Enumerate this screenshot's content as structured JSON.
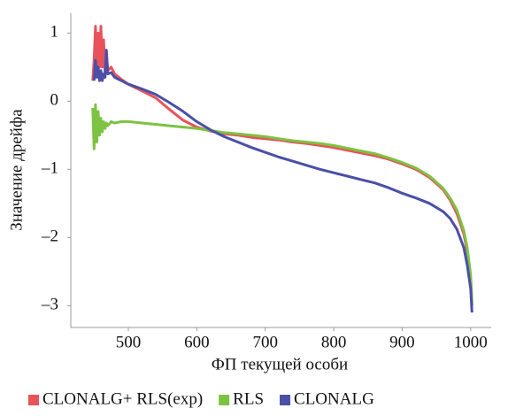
{
  "chart_data": {
    "type": "line",
    "x_label": "ФП текущей особи",
    "y_label": "Значение дрейфа",
    "x": [
      448,
      450,
      452,
      454,
      456,
      458,
      460,
      462,
      464,
      466,
      468,
      470,
      475,
      480,
      490,
      500,
      520,
      540,
      560,
      580,
      600,
      620,
      640,
      660,
      680,
      700,
      720,
      740,
      760,
      780,
      800,
      820,
      840,
      860,
      880,
      900,
      920,
      940,
      960,
      970,
      980,
      990,
      995,
      1000,
      1002
    ],
    "series": [
      {
        "name": "CLONALG+ RLS(exp)",
        "color": "#e8525a",
        "values": [
          0.3,
          0.6,
          1.1,
          0.4,
          1.0,
          0.5,
          1.1,
          0.5,
          0.9,
          0.4,
          0.7,
          0.45,
          0.5,
          0.4,
          0.32,
          0.25,
          0.15,
          0.05,
          -0.12,
          -0.28,
          -0.38,
          -0.44,
          -0.48,
          -0.5,
          -0.53,
          -0.55,
          -0.57,
          -0.6,
          -0.62,
          -0.65,
          -0.68,
          -0.72,
          -0.76,
          -0.8,
          -0.85,
          -0.92,
          -1.0,
          -1.12,
          -1.3,
          -1.45,
          -1.65,
          -1.95,
          -2.2,
          -2.6,
          -3.0
        ]
      },
      {
        "name": "RLS",
        "color": "#7dc242",
        "values": [
          -0.1,
          -0.7,
          -0.05,
          -0.6,
          -0.15,
          -0.5,
          -0.25,
          -0.45,
          -0.3,
          -0.4,
          -0.32,
          -0.36,
          -0.3,
          -0.32,
          -0.3,
          -0.3,
          -0.32,
          -0.34,
          -0.36,
          -0.38,
          -0.4,
          -0.43,
          -0.46,
          -0.48,
          -0.5,
          -0.52,
          -0.55,
          -0.58,
          -0.6,
          -0.62,
          -0.65,
          -0.69,
          -0.73,
          -0.77,
          -0.83,
          -0.9,
          -0.98,
          -1.1,
          -1.28,
          -1.42,
          -1.6,
          -1.9,
          -2.15,
          -2.55,
          -2.95
        ]
      },
      {
        "name": "CLONALG",
        "color": "#4a4fa8",
        "values": [
          null,
          0.3,
          0.6,
          0.35,
          0.5,
          0.3,
          0.45,
          0.3,
          0.4,
          0.35,
          0.75,
          0.4,
          0.42,
          0.35,
          0.3,
          0.25,
          0.18,
          0.1,
          -0.02,
          -0.15,
          -0.3,
          -0.42,
          -0.52,
          -0.6,
          -0.68,
          -0.75,
          -0.82,
          -0.88,
          -0.94,
          -1.0,
          -1.05,
          -1.1,
          -1.15,
          -1.2,
          -1.27,
          -1.35,
          -1.42,
          -1.5,
          -1.62,
          -1.72,
          -1.88,
          -2.15,
          -2.4,
          -2.75,
          -3.1
        ]
      }
    ],
    "xlim": [
      416,
      1030
    ],
    "ylim": [
      -3.32,
      1.29
    ],
    "xticks": [
      500,
      600,
      700,
      800,
      900,
      1000
    ],
    "yticks": [
      1,
      0,
      {
        "value": -1,
        "label": "–1"
      },
      {
        "value": -2,
        "label": "–2"
      },
      {
        "value": -3,
        "label": "–3"
      }
    ],
    "legend": "bottom"
  }
}
